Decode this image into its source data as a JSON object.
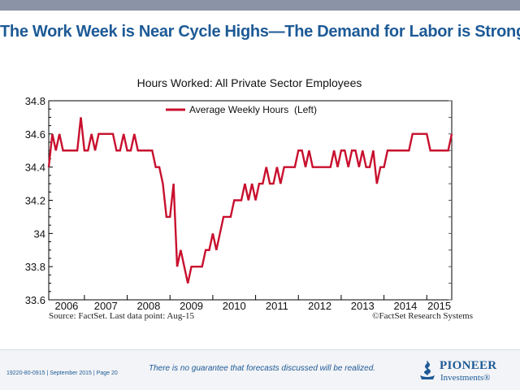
{
  "slide": {
    "title": "The Work Week is Near Cycle Highs—The Demand for Labor is Strong",
    "source_left": "Source: FactSet. Last data point: Aug-15",
    "source_right": "©FactSet Research Systems",
    "disclaimer": "There is no guarantee that forecasts discussed will be realized.",
    "doc_id": "19220-80-0915 | September 2015 | Page 20",
    "logo_name": "PIONEER",
    "logo_sub": "Investments®",
    "accent_color": "#1d5a96"
  },
  "chart_data": {
    "type": "line",
    "title": "Hours Worked: All Private Sector Employees",
    "xlabel": "",
    "ylabel": "",
    "ylim": [
      33.6,
      34.8
    ],
    "y_ticks": [
      "33.6",
      "33.8",
      "34",
      "34.2",
      "34.4",
      "34.6",
      "34.8"
    ],
    "x_tick_labels": [
      "2006",
      "2007",
      "2008",
      "2009",
      "2010",
      "2011",
      "2012",
      "2013",
      "2014",
      "2015"
    ],
    "x_range": [
      "2006-03",
      "2015-08"
    ],
    "legend_position": "top-center",
    "grid": false,
    "series": [
      {
        "name": "Average Weekly Hours  (Left)",
        "color": "#c8102e",
        "points": [
          [
            "2006-03",
            34.4
          ],
          [
            "2006-04",
            34.6
          ],
          [
            "2006-05",
            34.5
          ],
          [
            "2006-06",
            34.6
          ],
          [
            "2006-07",
            34.5
          ],
          [
            "2006-08",
            34.5
          ],
          [
            "2006-09",
            34.5
          ],
          [
            "2006-10",
            34.5
          ],
          [
            "2006-11",
            34.5
          ],
          [
            "2006-12",
            34.7
          ],
          [
            "2007-01",
            34.5
          ],
          [
            "2007-02",
            34.5
          ],
          [
            "2007-03",
            34.6
          ],
          [
            "2007-04",
            34.5
          ],
          [
            "2007-05",
            34.6
          ],
          [
            "2007-06",
            34.6
          ],
          [
            "2007-07",
            34.6
          ],
          [
            "2007-08",
            34.6
          ],
          [
            "2007-09",
            34.6
          ],
          [
            "2007-10",
            34.5
          ],
          [
            "2007-11",
            34.5
          ],
          [
            "2007-12",
            34.6
          ],
          [
            "2008-01",
            34.5
          ],
          [
            "2008-02",
            34.5
          ],
          [
            "2008-03",
            34.6
          ],
          [
            "2008-04",
            34.5
          ],
          [
            "2008-05",
            34.5
          ],
          [
            "2008-06",
            34.5
          ],
          [
            "2008-07",
            34.5
          ],
          [
            "2008-08",
            34.5
          ],
          [
            "2008-09",
            34.4
          ],
          [
            "2008-10",
            34.4
          ],
          [
            "2008-11",
            34.3
          ],
          [
            "2008-12",
            34.1
          ],
          [
            "2009-01",
            34.1
          ],
          [
            "2009-02",
            34.3
          ],
          [
            "2009-03",
            33.8
          ],
          [
            "2009-04",
            33.9
          ],
          [
            "2009-05",
            33.8
          ],
          [
            "2009-06",
            33.7
          ],
          [
            "2009-07",
            33.8
          ],
          [
            "2009-08",
            33.8
          ],
          [
            "2009-09",
            33.8
          ],
          [
            "2009-10",
            33.8
          ],
          [
            "2009-11",
            33.9
          ],
          [
            "2009-12",
            33.9
          ],
          [
            "2010-01",
            34.0
          ],
          [
            "2010-02",
            33.9
          ],
          [
            "2010-03",
            34.0
          ],
          [
            "2010-04",
            34.1
          ],
          [
            "2010-05",
            34.1
          ],
          [
            "2010-06",
            34.1
          ],
          [
            "2010-07",
            34.2
          ],
          [
            "2010-08",
            34.2
          ],
          [
            "2010-09",
            34.2
          ],
          [
            "2010-10",
            34.3
          ],
          [
            "2010-11",
            34.2
          ],
          [
            "2010-12",
            34.3
          ],
          [
            "2011-01",
            34.2
          ],
          [
            "2011-02",
            34.3
          ],
          [
            "2011-03",
            34.3
          ],
          [
            "2011-04",
            34.4
          ],
          [
            "2011-05",
            34.3
          ],
          [
            "2011-06",
            34.3
          ],
          [
            "2011-07",
            34.4
          ],
          [
            "2011-08",
            34.3
          ],
          [
            "2011-09",
            34.4
          ],
          [
            "2011-10",
            34.4
          ],
          [
            "2011-11",
            34.4
          ],
          [
            "2011-12",
            34.4
          ],
          [
            "2012-01",
            34.5
          ],
          [
            "2012-02",
            34.5
          ],
          [
            "2012-03",
            34.4
          ],
          [
            "2012-04",
            34.5
          ],
          [
            "2012-05",
            34.4
          ],
          [
            "2012-06",
            34.4
          ],
          [
            "2012-07",
            34.4
          ],
          [
            "2012-08",
            34.4
          ],
          [
            "2012-09",
            34.4
          ],
          [
            "2012-10",
            34.4
          ],
          [
            "2012-11",
            34.5
          ],
          [
            "2012-12",
            34.4
          ],
          [
            "2013-01",
            34.5
          ],
          [
            "2013-02",
            34.5
          ],
          [
            "2013-03",
            34.4
          ],
          [
            "2013-04",
            34.5
          ],
          [
            "2013-05",
            34.5
          ],
          [
            "2013-06",
            34.4
          ],
          [
            "2013-07",
            34.5
          ],
          [
            "2013-08",
            34.4
          ],
          [
            "2013-09",
            34.4
          ],
          [
            "2013-10",
            34.5
          ],
          [
            "2013-11",
            34.3
          ],
          [
            "2013-12",
            34.4
          ],
          [
            "2014-01",
            34.4
          ],
          [
            "2014-02",
            34.5
          ],
          [
            "2014-03",
            34.5
          ],
          [
            "2014-04",
            34.5
          ],
          [
            "2014-05",
            34.5
          ],
          [
            "2014-06",
            34.5
          ],
          [
            "2014-07",
            34.5
          ],
          [
            "2014-08",
            34.5
          ],
          [
            "2014-09",
            34.6
          ],
          [
            "2014-10",
            34.6
          ],
          [
            "2014-11",
            34.6
          ],
          [
            "2014-12",
            34.6
          ],
          [
            "2015-01",
            34.6
          ],
          [
            "2015-02",
            34.5
          ],
          [
            "2015-03",
            34.5
          ],
          [
            "2015-04",
            34.5
          ],
          [
            "2015-05",
            34.5
          ],
          [
            "2015-06",
            34.5
          ],
          [
            "2015-07",
            34.5
          ],
          [
            "2015-08",
            34.6
          ]
        ]
      }
    ]
  }
}
